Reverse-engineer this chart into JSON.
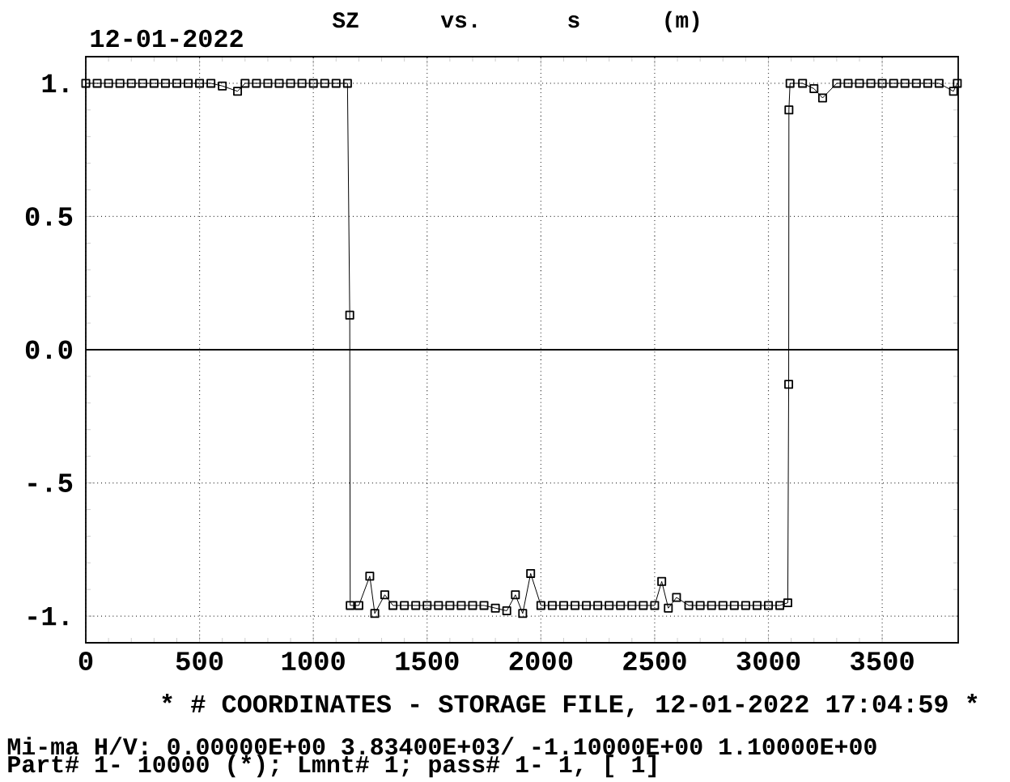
{
  "chart_data": {
    "type": "line",
    "title": "SZ vs. s (m)",
    "subtitle": "12-01-2022",
    "annotations": [
      "* # COORDINATES  - STORAGE FILE, 12-01-2022 17:04:59 *",
      "Mi-ma H/V:   0.00000E+00  3.83400E+03/ -1.10000E+00  1.10000E+00",
      "Part#  1- 10000 (*); Lmnt#     1; pass#          1-        1, [     1]"
    ],
    "xlim": [
      0,
      3834
    ],
    "ylim": [
      -1.1,
      1.1
    ],
    "xticks": [
      0,
      500,
      1000,
      1500,
      2000,
      2500,
      3000,
      3500
    ],
    "yticks": [
      {
        "value": -1,
        "label": "-1."
      },
      {
        "value": -0.5,
        "label": "-.5"
      },
      {
        "value": 0,
        "label": "0.0"
      },
      {
        "value": 0.5,
        "label": "0.5"
      },
      {
        "value": 1,
        "label": "1."
      }
    ],
    "grid": true,
    "marker": "square",
    "line_style": "solid",
    "ref_lines": [
      {
        "axis": "y",
        "value": 0
      }
    ],
    "x": [
      0,
      50,
      100,
      150,
      200,
      250,
      300,
      350,
      400,
      450,
      500,
      550,
      600,
      667,
      700,
      750,
      800,
      850,
      900,
      950,
      1000,
      1050,
      1100,
      1150,
      1160,
      1162,
      1200,
      1248,
      1270,
      1314,
      1350,
      1400,
      1450,
      1500,
      1550,
      1600,
      1650,
      1700,
      1750,
      1800,
      1850,
      1888,
      1920,
      1955,
      2000,
      2050,
      2100,
      2150,
      2200,
      2250,
      2300,
      2350,
      2400,
      2450,
      2500,
      2531,
      2560,
      2596,
      2650,
      2700,
      2750,
      2800,
      2850,
      2900,
      2950,
      3000,
      3050,
      3085,
      3089,
      3090,
      3095,
      3150,
      3200,
      3238,
      3300,
      3350,
      3400,
      3450,
      3500,
      3550,
      3600,
      3650,
      3700,
      3750,
      3813,
      3830
    ],
    "series": [
      {
        "color": "#000000",
        "values": [
          1.0,
          1.0,
          1.0,
          1.0,
          1.0,
          1.0,
          1.0,
          1.0,
          1.0,
          1.0,
          1.0,
          1.0,
          0.99,
          0.97,
          1.0,
          1.0,
          1.0,
          1.0,
          1.0,
          1.0,
          1.0,
          1.0,
          1.0,
          1.0,
          0.13,
          -0.96,
          -0.96,
          -0.85,
          -0.99,
          -0.92,
          -0.96,
          -0.96,
          -0.96,
          -0.96,
          -0.96,
          -0.96,
          -0.96,
          -0.96,
          -0.96,
          -0.97,
          -0.98,
          -0.92,
          -0.99,
          -0.84,
          -0.96,
          -0.96,
          -0.96,
          -0.96,
          -0.96,
          -0.96,
          -0.96,
          -0.96,
          -0.96,
          -0.96,
          -0.96,
          -0.87,
          -0.97,
          -0.93,
          -0.96,
          -0.96,
          -0.96,
          -0.96,
          -0.96,
          -0.96,
          -0.96,
          -0.96,
          -0.96,
          -0.95,
          -0.13,
          0.9,
          1.0,
          1.0,
          0.98,
          0.945,
          1.0,
          1.0,
          1.0,
          1.0,
          1.0,
          1.0,
          1.0,
          1.0,
          1.0,
          1.0,
          0.97,
          1.0
        ]
      }
    ]
  }
}
